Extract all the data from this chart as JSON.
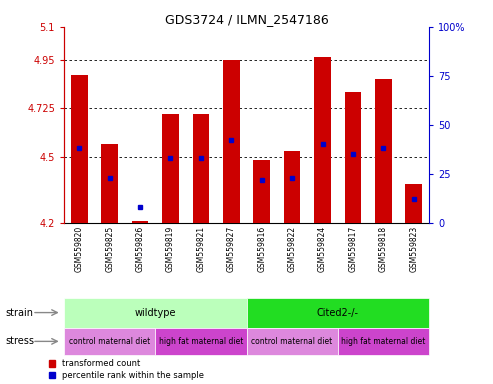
{
  "title": "GDS3724 / ILMN_2547186",
  "samples": [
    "GSM559820",
    "GSM559825",
    "GSM559826",
    "GSM559819",
    "GSM559821",
    "GSM559827",
    "GSM559816",
    "GSM559822",
    "GSM559824",
    "GSM559817",
    "GSM559818",
    "GSM559823"
  ],
  "bar_values": [
    4.88,
    4.56,
    4.21,
    4.7,
    4.7,
    4.95,
    4.49,
    4.53,
    4.96,
    4.8,
    4.86,
    4.38
  ],
  "dot_values": [
    0.38,
    0.23,
    0.08,
    0.33,
    0.33,
    0.42,
    0.22,
    0.23,
    0.4,
    0.35,
    0.38,
    0.12
  ],
  "ymin": 4.2,
  "ymax": 5.1,
  "yticks": [
    4.2,
    4.5,
    4.725,
    4.95,
    5.1
  ],
  "ytick_labels": [
    "4.2",
    "4.5",
    "4.725",
    "4.95",
    "5.1"
  ],
  "right_yticks": [
    0.0,
    0.25,
    0.5,
    0.75,
    1.0
  ],
  "right_ytick_labels": [
    "0",
    "25",
    "50",
    "75",
    "100%"
  ],
  "bar_color": "#cc0000",
  "dot_color": "#0000cc",
  "strain_bg_wildtype": "#bbffbb",
  "strain_bg_cited": "#22dd22",
  "stress_color_control": "#dd88dd",
  "stress_color_highfat": "#cc44cc",
  "legend_label_bar": "transformed count",
  "legend_label_dot": "percentile rank within the sample",
  "axis_color_left": "#cc0000",
  "axis_color_right": "#0000cc",
  "strain_label_left": "strain",
  "stress_label_left": "stress",
  "wildtype_label": "wildtype",
  "cited_label": "Cited2-/-",
  "control_label": "control maternal diet",
  "highfat_label": "high fat maternal diet"
}
